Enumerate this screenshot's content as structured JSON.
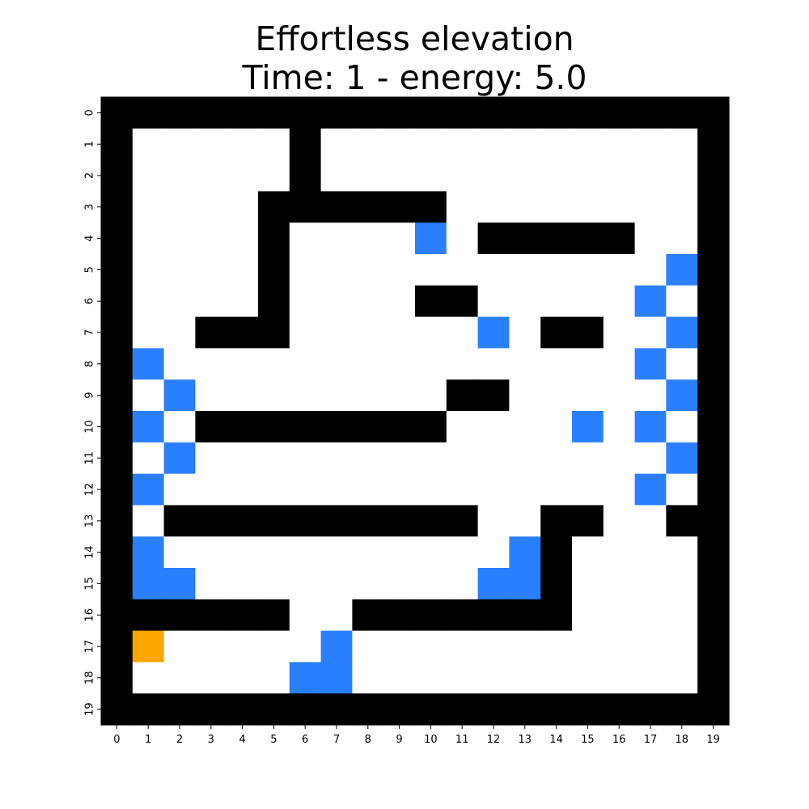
{
  "title": {
    "line1": "Effortless elevation",
    "line2": "Time: 1 - energy: 5.0"
  },
  "grid": {
    "rows": 20,
    "cols": 20,
    "x_ticks": [
      "0",
      "1",
      "2",
      "3",
      "4",
      "5",
      "6",
      "7",
      "8",
      "9",
      "10",
      "11",
      "12",
      "13",
      "14",
      "15",
      "16",
      "17",
      "18",
      "19"
    ],
    "y_ticks": [
      "0",
      "1",
      "2",
      "3",
      "4",
      "5",
      "6",
      "7",
      "8",
      "9",
      "10",
      "11",
      "12",
      "13",
      "14",
      "15",
      "16",
      "17",
      "18",
      "19"
    ],
    "legend": {
      "0": "empty",
      "1": "wall",
      "2": "blue-tile",
      "3": "agent"
    },
    "cells": [
      "11111111111111111111",
      "10000010000000000001",
      "10000010000000000001",
      "10000111111000000001",
      "10000100002011111001",
      "10000100000000000021",
      "10000100001100000201",
      "10011100000020110021",
      "12000000000000000201",
      "10200000000110000021",
      "12011111111000020201",
      "10200000000000000021",
      "12000000000000000201",
      "10111111111100110011",
      "12000000000002100001",
      "12200000000022100001",
      "11111100111111100001",
      "13000002000000000001",
      "10000022000000000001",
      "11111111111111111111"
    ]
  },
  "colors": {
    "empty": "#ffffff",
    "wall": "#000000",
    "blue-tile": "#2a7fff",
    "agent": "#ffa500"
  }
}
